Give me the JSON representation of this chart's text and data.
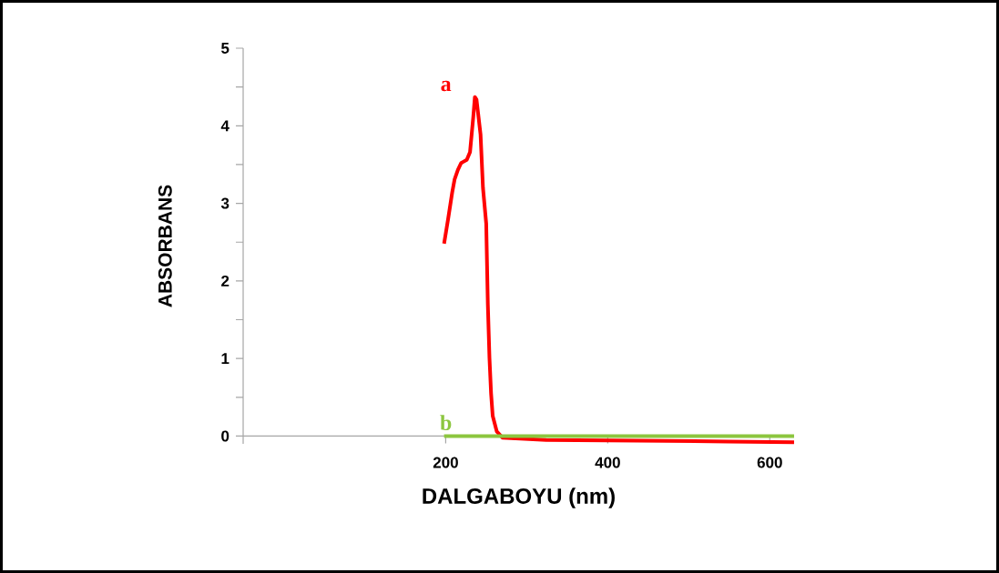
{
  "chart_data": {
    "type": "line",
    "xlabel": "DALGABOYU (nm)",
    "ylabel": "ABSORBANS",
    "xlim": [
      -50,
      630
    ],
    "xticks": [
      200,
      400,
      600
    ],
    "ylim": [
      -0.1,
      5
    ],
    "yticks": [
      0,
      {
        "value": 0.5,
        "label": null
      },
      1,
      {
        "value": 1.5,
        "label": null
      },
      2,
      {
        "value": 2.5,
        "label": null
      },
      3,
      {
        "value": 3.5,
        "label": null
      },
      4,
      {
        "value": 4.5,
        "label": null
      },
      5
    ],
    "grid": false,
    "marker": "none",
    "line_style": "solid",
    "series": [
      {
        "name": "a",
        "color": "#ff0000",
        "x": [
          198,
          203,
          208,
          211,
          215,
          219,
          226,
          230,
          234,
          236,
          238,
          243,
          246,
          250,
          252,
          254,
          256,
          258,
          263,
          270,
          324,
          437,
          549,
          630
        ],
        "values": [
          2.48,
          2.8,
          3.14,
          3.31,
          3.43,
          3.52,
          3.56,
          3.66,
          4.11,
          4.37,
          4.34,
          3.89,
          3.2,
          2.74,
          1.7,
          1.01,
          0.55,
          0.26,
          0.06,
          -0.02,
          -0.05,
          -0.06,
          -0.07,
          -0.08
        ]
      },
      {
        "name": "b",
        "color": "#8cc63f",
        "x": [
          198,
          630
        ],
        "values": [
          0,
          0
        ]
      }
    ]
  }
}
